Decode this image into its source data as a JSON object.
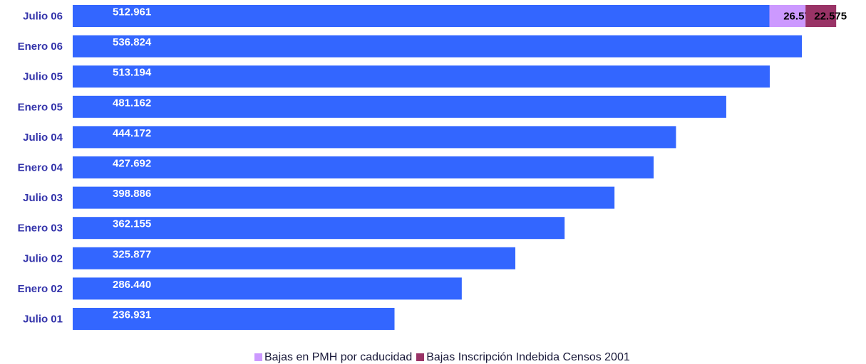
{
  "chart_data": {
    "type": "bar",
    "orientation": "horizontal",
    "stacked": true,
    "categories": [
      "Julio 06",
      "Enero 06",
      "Julio 05",
      "Enero 05",
      "Julio 04",
      "Enero 04",
      "Julio 03",
      "Enero 03",
      "Julio 02",
      "Enero 02",
      "Julio 01"
    ],
    "series": [
      {
        "color": "#3366ff",
        "values": [
          512961,
          536824,
          513194,
          481162,
          444172,
          427692,
          398886,
          362155,
          325877,
          286440,
          236931
        ],
        "labels": [
          "512.961",
          "536.824",
          "513.194",
          "481.162",
          "444.172",
          "427.692",
          "398.886",
          "362.155",
          "325.877",
          "286.440",
          "236.931"
        ]
      },
      {
        "name": "Bajas en PMH por caducidad",
        "color": "#cc99ff",
        "values": [
          26573,
          0,
          0,
          0,
          0,
          0,
          0,
          0,
          0,
          0,
          0
        ],
        "labels": [
          "26.573",
          "",
          "",
          "",
          "",
          "",
          "",
          "",
          "",
          "",
          ""
        ]
      },
      {
        "name": "Bajas Inscripción Indebida Censos 2001",
        "color": "#993366",
        "values": [
          22575,
          0,
          0,
          0,
          0,
          0,
          0,
          0,
          0,
          0,
          0
        ],
        "labels": [
          "22.575",
          "",
          "",
          "",
          "",
          "",
          "",
          "",
          "",
          "",
          ""
        ]
      }
    ],
    "xlim": [
      0,
      562000
    ],
    "grid": false,
    "legend_position": "bottom",
    "title": "",
    "xlabel": "",
    "ylabel": ""
  },
  "legend": {
    "items": [
      {
        "label": "Bajas en PMH por caducidad",
        "color": "#cc99ff"
      },
      {
        "label": "Bajas Inscripción Indebida Censos 2001",
        "color": "#993366"
      }
    ]
  }
}
